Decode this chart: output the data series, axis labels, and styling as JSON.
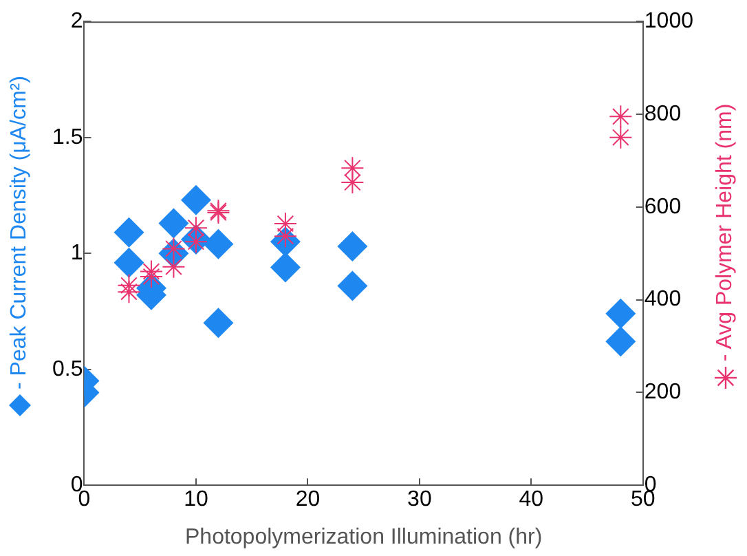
{
  "chart_data": {
    "type": "scatter",
    "xlabel": "Photopolymerization Illumination (hr)",
    "ylabel": "- Peak Current Density (μA/cm²)",
    "y2label": "- Avg Polymer Height (nm)",
    "xlim": [
      0,
      50
    ],
    "xticks": [
      0,
      10,
      20,
      30,
      40,
      50
    ],
    "ylim": [
      0,
      2
    ],
    "yticks": [
      0,
      0.5,
      1,
      1.5,
      2
    ],
    "y2lim": [
      0,
      1000
    ],
    "y2ticks": [
      0,
      200,
      400,
      600,
      800,
      1000
    ],
    "grid": false,
    "legend": false,
    "series": [
      {
        "color": "#1e88f0",
        "marker": "diamond",
        "axis": "y",
        "x": [
          0,
          0,
          4,
          4,
          6,
          6,
          8,
          8,
          10,
          10,
          12,
          12,
          18,
          18,
          24,
          24,
          48,
          48
        ],
        "values": [
          0.45,
          0.4,
          1.09,
          0.96,
          0.85,
          0.82,
          1.13,
          1.0,
          1.23,
          1.06,
          1.04,
          0.7,
          1.05,
          0.94,
          1.03,
          0.86,
          0.74,
          0.62
        ]
      },
      {
        "color": "#e8336e",
        "marker": "cross",
        "axis": "y2",
        "x": [
          4,
          4,
          6,
          6,
          8,
          8,
          10,
          10,
          12,
          12,
          18,
          18,
          24,
          24,
          48,
          48
        ],
        "values": [
          431,
          417,
          461,
          450,
          510,
          471,
          555,
          525,
          592,
          588,
          564,
          537,
          684,
          653,
          795,
          750
        ]
      }
    ]
  }
}
